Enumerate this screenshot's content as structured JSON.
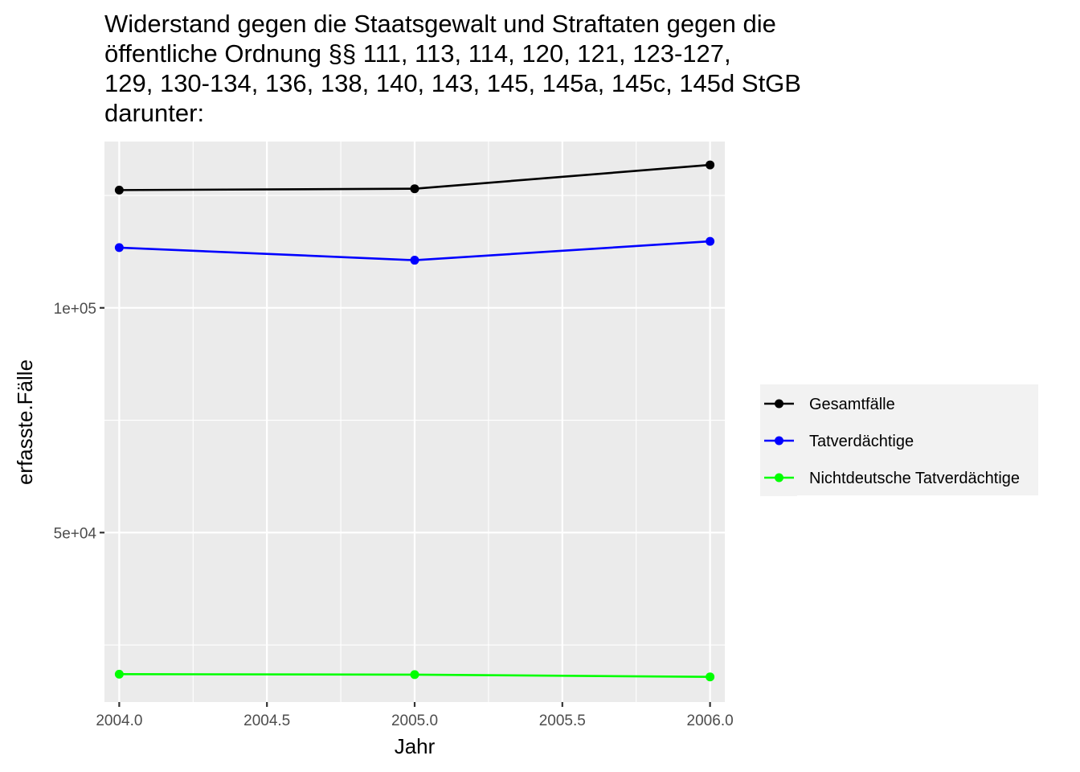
{
  "chart_data": {
    "type": "line",
    "title_lines": [
      "Widerstand gegen die Staatsgewalt und Straftaten gegen die",
      "öffentliche Ordnung §§ 111, 113, 114, 120, 121, 123-127,",
      "129, 130-134, 136, 138, 140, 143, 145, 145a, 145c, 145d StGB",
      "darunter:"
    ],
    "xlabel": "Jahr",
    "ylabel": "erfasste.Fälle",
    "x": [
      2004,
      2005,
      2006
    ],
    "xlim": [
      2003.95,
      2006.05
    ],
    "ylim": [
      12300,
      137000
    ],
    "x_ticks": [
      2004.0,
      2004.5,
      2005.0,
      2005.5,
      2006.0
    ],
    "x_tick_labels": [
      "2004.0",
      "2004.5",
      "2005.0",
      "2005.5",
      "2006.0"
    ],
    "y_ticks": [
      50000,
      100000
    ],
    "y_tick_labels": [
      "5e+04",
      "1e+05"
    ],
    "y_minor_ticks": [
      25000,
      75000,
      125000
    ],
    "grid": true,
    "legend_position": "right",
    "series": [
      {
        "name": "Gesamtfälle",
        "color": "#000000",
        "values": [
          126200,
          126500,
          131800
        ]
      },
      {
        "name": "Tatverdächtige",
        "color": "#0000ff",
        "values": [
          113400,
          110600,
          114800
        ]
      },
      {
        "name": "Nichtdeutsche Tatverdächtige",
        "color": "#00ff00",
        "values": [
          18500,
          18400,
          17900
        ]
      }
    ]
  }
}
